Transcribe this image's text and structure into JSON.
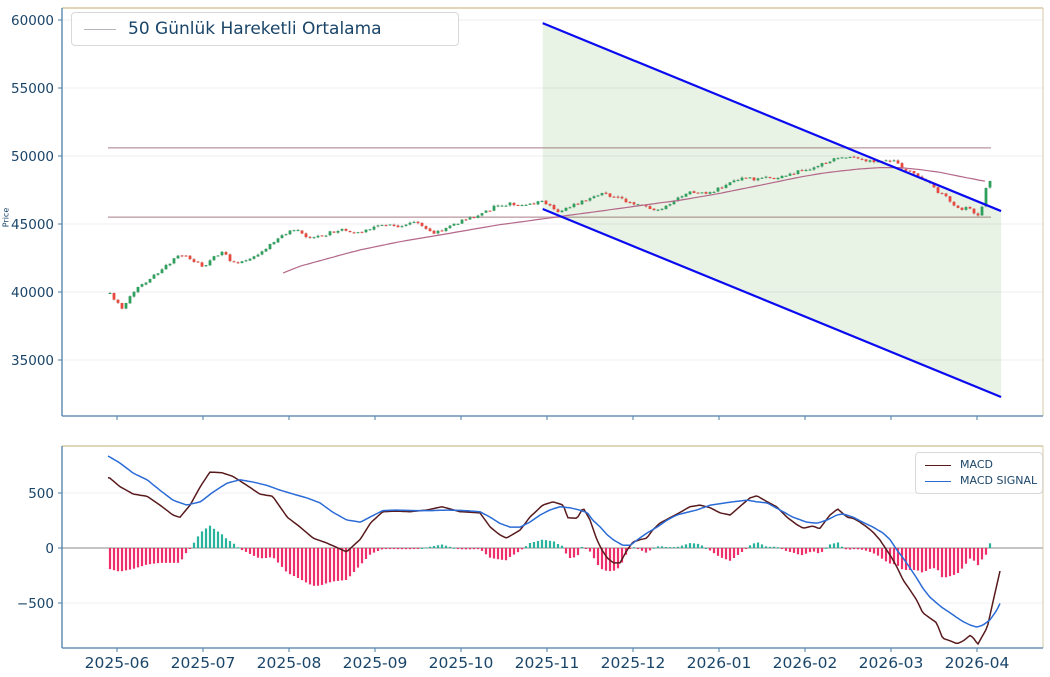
{
  "x_axis": {
    "months": [
      "2025-06",
      "2025-07",
      "2025-08",
      "2025-09",
      "2025-10",
      "2025-11",
      "2025-12",
      "2026-01",
      "2026-02",
      "2026-03",
      "2026-04"
    ]
  },
  "colors": {
    "text": "#1a4569",
    "candle_up": "#2ea05c",
    "candle_down": "#e8483e",
    "wick": "#8c8c8c",
    "ma50": "#b4688a",
    "level_line": "#c9afb5",
    "channel_line": "#0b0bf0",
    "channel_fill": "rgba(110,175,95,0.16)",
    "macd_line": "#581a1c",
    "signal_line": "#2a6bd6",
    "hist_positive": "#27b39c",
    "hist_negative": "#ee2e69",
    "grid": "#f0ecf1",
    "zero_line": "#8a8a8a",
    "spine_blue": "#4d7ea8",
    "spine_tan": "#d5c8a4"
  },
  "chart_data": [
    {
      "type": "candlestick",
      "title": "",
      "ylabel": "Price",
      "legend": [
        "50 Günlük Hareketli Ortalama"
      ],
      "yticks": [
        35000,
        40000,
        45000,
        50000,
        55000,
        60000
      ],
      "ylim": [
        30850,
        60700
      ],
      "xlim": [
        -0.3,
        10.35
      ],
      "x_unit": "months_after_2025-06",
      "candles_per_unit": 21.5,
      "horizontal_levels": [
        50600,
        45500
      ],
      "trend_channel": {
        "upper": [
          [
            4.95,
            59770
          ],
          [
            10.28,
            45950
          ]
        ],
        "lower": [
          [
            4.95,
            46100
          ],
          [
            10.28,
            32280
          ]
        ]
      },
      "close_keyframes": [
        [
          -0.08,
          39900
        ],
        [
          0.06,
          38700
        ],
        [
          0.21,
          40200
        ],
        [
          0.38,
          41000
        ],
        [
          0.54,
          41700
        ],
        [
          0.67,
          42500
        ],
        [
          0.79,
          42700
        ],
        [
          0.91,
          42200
        ],
        [
          1.02,
          41800
        ],
        [
          1.13,
          42600
        ],
        [
          1.24,
          43000
        ],
        [
          1.35,
          42100
        ],
        [
          1.5,
          42400
        ],
        [
          1.65,
          42800
        ],
        [
          1.8,
          43600
        ],
        [
          1.98,
          44400
        ],
        [
          2.09,
          44500
        ],
        [
          2.23,
          43900
        ],
        [
          2.4,
          44200
        ],
        [
          2.6,
          44600
        ],
        [
          2.78,
          44300
        ],
        [
          2.93,
          44700
        ],
        [
          3.13,
          45000
        ],
        [
          3.3,
          44800
        ],
        [
          3.48,
          45200
        ],
        [
          3.67,
          44300
        ],
        [
          3.86,
          44800
        ],
        [
          4.03,
          45300
        ],
        [
          4.21,
          45700
        ],
        [
          4.41,
          46300
        ],
        [
          4.58,
          46500
        ],
        [
          4.76,
          46300
        ],
        [
          4.95,
          46700
        ],
        [
          5.05,
          46300
        ],
        [
          5.14,
          45900
        ],
        [
          5.26,
          46200
        ],
        [
          5.4,
          46700
        ],
        [
          5.51,
          47000
        ],
        [
          5.63,
          47300
        ],
        [
          5.74,
          47100
        ],
        [
          5.86,
          46800
        ],
        [
          6.0,
          46500
        ],
        [
          6.14,
          46300
        ],
        [
          6.27,
          45900
        ],
        [
          6.38,
          46200
        ],
        [
          6.56,
          47000
        ],
        [
          6.7,
          47400
        ],
        [
          6.85,
          47200
        ],
        [
          7.0,
          47600
        ],
        [
          7.14,
          48000
        ],
        [
          7.31,
          48400
        ],
        [
          7.43,
          48200
        ],
        [
          7.55,
          48500
        ],
        [
          7.66,
          48300
        ],
        [
          7.78,
          48600
        ],
        [
          7.9,
          48800
        ],
        [
          8.01,
          49000
        ],
        [
          8.13,
          49200
        ],
        [
          8.24,
          49500
        ],
        [
          8.36,
          49800
        ],
        [
          8.48,
          50000
        ],
        [
          8.59,
          49900
        ],
        [
          8.71,
          49700
        ],
        [
          8.83,
          49600
        ],
        [
          8.94,
          49800
        ],
        [
          9.06,
          49500
        ],
        [
          9.17,
          49000
        ],
        [
          9.29,
          48600
        ],
        [
          9.41,
          48200
        ],
        [
          9.52,
          47500
        ],
        [
          9.64,
          47000
        ],
        [
          9.72,
          46500
        ],
        [
          9.81,
          46000
        ],
        [
          9.9,
          46300
        ],
        [
          9.97,
          45700
        ],
        [
          10.01,
          45500
        ],
        [
          10.06,
          46400
        ],
        [
          10.11,
          47800
        ],
        [
          10.15,
          48200
        ]
      ],
      "ma50_keyframes": [
        [
          1.93,
          41400
        ],
        [
          2.13,
          41900
        ],
        [
          2.36,
          42300
        ],
        [
          2.59,
          42700
        ],
        [
          2.83,
          43100
        ],
        [
          3.06,
          43400
        ],
        [
          3.29,
          43700
        ],
        [
          3.52,
          43950
        ],
        [
          3.76,
          44200
        ],
        [
          3.99,
          44450
        ],
        [
          4.22,
          44700
        ],
        [
          4.45,
          44950
        ],
        [
          4.69,
          45150
        ],
        [
          4.92,
          45350
        ],
        [
          5.15,
          45550
        ],
        [
          5.38,
          45750
        ],
        [
          5.62,
          45950
        ],
        [
          5.85,
          46150
        ],
        [
          6.08,
          46350
        ],
        [
          6.31,
          46550
        ],
        [
          6.55,
          46750
        ],
        [
          6.78,
          47000
        ],
        [
          7.01,
          47250
        ],
        [
          7.24,
          47550
        ],
        [
          7.48,
          47850
        ],
        [
          7.71,
          48150
        ],
        [
          7.94,
          48450
        ],
        [
          8.17,
          48700
        ],
        [
          8.41,
          48900
        ],
        [
          8.64,
          49050
        ],
        [
          8.87,
          49150
        ],
        [
          9.1,
          49150
        ],
        [
          9.34,
          49000
        ],
        [
          9.57,
          48800
        ],
        [
          9.8,
          48500
        ],
        [
          10.09,
          48150
        ]
      ]
    },
    {
      "type": "line",
      "title": "",
      "legend": [
        "MACD",
        "MACD SIGNAL"
      ],
      "yticks": [
        -500,
        0,
        500
      ],
      "ylim": [
        -915,
        925
      ],
      "xlim": [
        -0.3,
        10.35
      ],
      "histogram": "macd_minus_signal",
      "macd_keyframes": [
        [
          -0.09,
          640
        ],
        [
          0.03,
          560
        ],
        [
          0.19,
          490
        ],
        [
          0.35,
          470
        ],
        [
          0.5,
          390
        ],
        [
          0.65,
          300
        ],
        [
          0.73,
          278
        ],
        [
          0.85,
          390
        ],
        [
          0.97,
          560
        ],
        [
          1.08,
          690
        ],
        [
          1.22,
          685
        ],
        [
          1.35,
          650
        ],
        [
          1.51,
          570
        ],
        [
          1.66,
          490
        ],
        [
          1.81,
          470
        ],
        [
          1.98,
          280
        ],
        [
          2.13,
          190
        ],
        [
          2.28,
          90
        ],
        [
          2.44,
          45
        ],
        [
          2.67,
          -35
        ],
        [
          2.83,
          80
        ],
        [
          2.95,
          230
        ],
        [
          3.09,
          330
        ],
        [
          3.23,
          335
        ],
        [
          3.41,
          330
        ],
        [
          3.6,
          345
        ],
        [
          3.78,
          375
        ],
        [
          3.99,
          330
        ],
        [
          4.22,
          320
        ],
        [
          4.34,
          190
        ],
        [
          4.45,
          120
        ],
        [
          4.53,
          90
        ],
        [
          4.69,
          165
        ],
        [
          4.8,
          280
        ],
        [
          4.95,
          390
        ],
        [
          5.07,
          420
        ],
        [
          5.19,
          390
        ],
        [
          5.24,
          275
        ],
        [
          5.35,
          270
        ],
        [
          5.42,
          365
        ],
        [
          5.5,
          255
        ],
        [
          5.58,
          75
        ],
        [
          5.64,
          -20
        ],
        [
          5.7,
          -90
        ],
        [
          5.77,
          -135
        ],
        [
          5.85,
          -135
        ],
        [
          5.93,
          -20
        ],
        [
          6.0,
          55
        ],
        [
          6.08,
          75
        ],
        [
          6.16,
          90
        ],
        [
          6.23,
          165
        ],
        [
          6.31,
          225
        ],
        [
          6.43,
          275
        ],
        [
          6.55,
          325
        ],
        [
          6.66,
          375
        ],
        [
          6.78,
          390
        ],
        [
          6.9,
          365
        ],
        [
          7.01,
          320
        ],
        [
          7.13,
          300
        ],
        [
          7.24,
          375
        ],
        [
          7.36,
          455
        ],
        [
          7.44,
          475
        ],
        [
          7.56,
          420
        ],
        [
          7.67,
          375
        ],
        [
          7.79,
          280
        ],
        [
          7.91,
          210
        ],
        [
          7.98,
          180
        ],
        [
          8.09,
          200
        ],
        [
          8.17,
          175
        ],
        [
          8.29,
          300
        ],
        [
          8.38,
          355
        ],
        [
          8.49,
          280
        ],
        [
          8.56,
          270
        ],
        [
          8.64,
          235
        ],
        [
          8.72,
          190
        ],
        [
          8.79,
          145
        ],
        [
          8.87,
          75
        ],
        [
          8.95,
          -20
        ],
        [
          9.01,
          -90
        ],
        [
          9.07,
          -175
        ],
        [
          9.14,
          -290
        ],
        [
          9.22,
          -380
        ],
        [
          9.3,
          -475
        ],
        [
          9.37,
          -590
        ],
        [
          9.45,
          -635
        ],
        [
          9.53,
          -680
        ],
        [
          9.6,
          -820
        ],
        [
          9.69,
          -845
        ],
        [
          9.77,
          -870
        ],
        [
          9.84,
          -845
        ],
        [
          9.92,
          -795
        ],
        [
          9.95,
          -810
        ],
        [
          10.01,
          -875
        ],
        [
          10.12,
          -720
        ],
        [
          10.19,
          -475
        ],
        [
          10.27,
          -200
        ]
      ],
      "signal_keyframes": [
        [
          -0.1,
          835
        ],
        [
          0.03,
          775
        ],
        [
          0.19,
          680
        ],
        [
          0.35,
          620
        ],
        [
          0.5,
          525
        ],
        [
          0.65,
          435
        ],
        [
          0.81,
          390
        ],
        [
          0.97,
          420
        ],
        [
          1.12,
          510
        ],
        [
          1.28,
          590
        ],
        [
          1.43,
          620
        ],
        [
          1.58,
          600
        ],
        [
          1.74,
          570
        ],
        [
          1.9,
          525
        ],
        [
          2.05,
          490
        ],
        [
          2.21,
          455
        ],
        [
          2.36,
          410
        ],
        [
          2.51,
          325
        ],
        [
          2.67,
          255
        ],
        [
          2.83,
          235
        ],
        [
          2.94,
          280
        ],
        [
          3.09,
          340
        ],
        [
          3.25,
          345
        ],
        [
          3.45,
          340
        ],
        [
          3.65,
          340
        ],
        [
          3.85,
          345
        ],
        [
          4.05,
          340
        ],
        [
          4.22,
          330
        ],
        [
          4.34,
          280
        ],
        [
          4.45,
          225
        ],
        [
          4.57,
          190
        ],
        [
          4.69,
          190
        ],
        [
          4.8,
          235
        ],
        [
          4.92,
          300
        ],
        [
          5.03,
          345
        ],
        [
          5.15,
          375
        ],
        [
          5.27,
          365
        ],
        [
          5.38,
          345
        ],
        [
          5.47,
          320
        ],
        [
          5.53,
          255
        ],
        [
          5.62,
          190
        ],
        [
          5.7,
          120
        ],
        [
          5.77,
          75
        ],
        [
          5.88,
          25
        ],
        [
          5.97,
          25
        ],
        [
          6.05,
          75
        ],
        [
          6.16,
          135
        ],
        [
          6.28,
          190
        ],
        [
          6.4,
          255
        ],
        [
          6.51,
          300
        ],
        [
          6.63,
          325
        ],
        [
          6.74,
          345
        ],
        [
          6.9,
          390
        ],
        [
          7.16,
          420
        ],
        [
          7.33,
          435
        ],
        [
          7.44,
          420
        ],
        [
          7.56,
          410
        ],
        [
          7.71,
          345
        ],
        [
          7.86,
          280
        ],
        [
          8.02,
          235
        ],
        [
          8.14,
          225
        ],
        [
          8.26,
          255
        ],
        [
          8.37,
          300
        ],
        [
          8.44,
          310
        ],
        [
          8.56,
          280
        ],
        [
          8.67,
          235
        ],
        [
          8.79,
          190
        ],
        [
          8.91,
          135
        ],
        [
          8.99,
          75
        ],
        [
          9.07,
          -20
        ],
        [
          9.14,
          -90
        ],
        [
          9.22,
          -180
        ],
        [
          9.3,
          -275
        ],
        [
          9.37,
          -365
        ],
        [
          9.45,
          -445
        ],
        [
          9.53,
          -500
        ],
        [
          9.6,
          -545
        ],
        [
          9.69,
          -590
        ],
        [
          9.77,
          -635
        ],
        [
          9.84,
          -670
        ],
        [
          9.92,
          -700
        ],
        [
          10.0,
          -720
        ],
        [
          10.07,
          -700
        ],
        [
          10.15,
          -655
        ],
        [
          10.23,
          -565
        ],
        [
          10.27,
          -500
        ]
      ]
    }
  ]
}
